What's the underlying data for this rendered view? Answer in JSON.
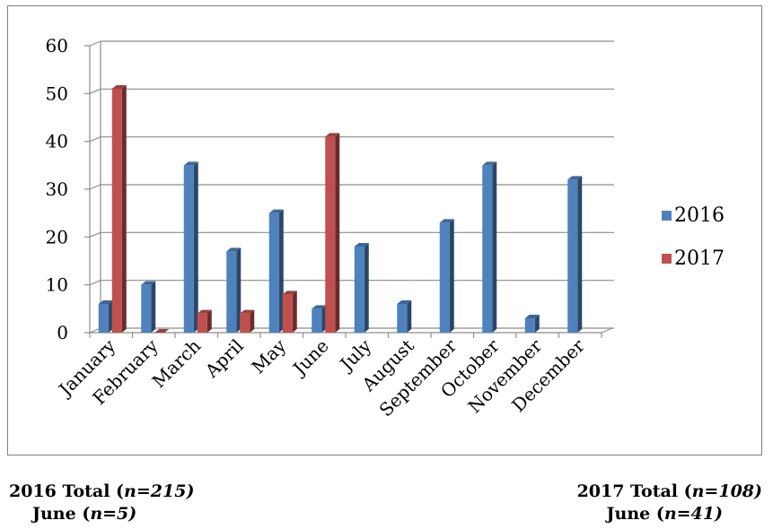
{
  "chart_data": {
    "type": "bar",
    "categories": [
      "January",
      "February",
      "March",
      "April",
      "May",
      "June",
      "July",
      "August",
      "September",
      "October",
      "November",
      "December"
    ],
    "series": [
      {
        "name": "2016",
        "color": "#4F81BD",
        "values": [
          6,
          10,
          35,
          17,
          25,
          5,
          18,
          6,
          23,
          35,
          3,
          32
        ]
      },
      {
        "name": "2017",
        "color": "#C0504D",
        "values": [
          51,
          0,
          4,
          4,
          8,
          41,
          null,
          null,
          null,
          null,
          null,
          null
        ]
      }
    ],
    "yticks": [
      0,
      10,
      20,
      30,
      40,
      50,
      60
    ],
    "ylim": [
      0,
      60
    ],
    "grid": true,
    "legend": "right",
    "style": "3d-clustered-column"
  },
  "footer": {
    "left": {
      "line1_prefix": "2016 Total (",
      "line1_n": "n=215)",
      "line2_prefix": "June (",
      "line2_n": "n=5)"
    },
    "right": {
      "line1_prefix": "2017 Total (",
      "line1_n": "n=108)",
      "line2_prefix": "June (",
      "line2_n": "n=41)"
    }
  }
}
